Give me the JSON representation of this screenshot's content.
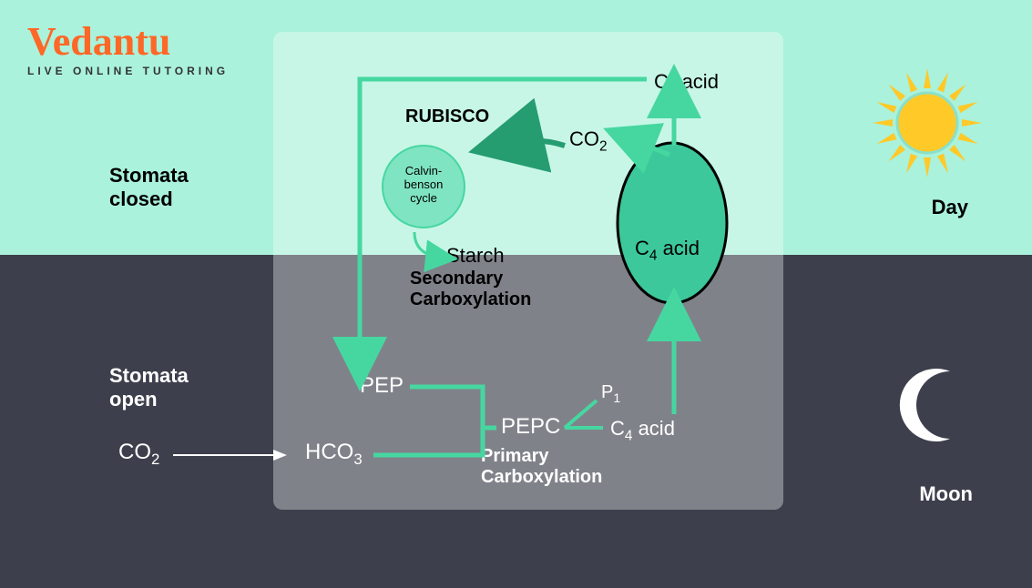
{
  "brand": {
    "name": "Vedantu",
    "tagline": "LIVE ONLINE TUTORING",
    "name_color": "#ff6726",
    "tagline_color": "#333333"
  },
  "colors": {
    "bg_top": "#aaf2db",
    "bg_bottom": "#3d3f4c",
    "overlay": "rgba(255,255,255,0.35)",
    "overlay_dark_half": "rgba(61,63,76,0.0)",
    "green_line": "#46d7a0",
    "dark_green": "#259d71",
    "ellipse_fill": "#3cc89a",
    "ellipse_stroke": "#000000",
    "circle_fill": "#7fe4c2",
    "circle_stroke": "#46d7a0",
    "sun_body": "#ffc928",
    "sun_outline": "#8be0c8",
    "moon_fill": "#ffffff",
    "text_dark": "#111111",
    "text_light": "#ffffff",
    "arrow_white": "#ffffff"
  },
  "labels": {
    "stomata_closed": "Stomata closed",
    "stomata_open": "Stomata open",
    "day": "Day",
    "moon": "Moon",
    "co2_ext": "CO₂",
    "rubisco": "RUBISCO",
    "c3_acid": "C₃ acid",
    "co2": "CO₂",
    "calvin": "Calvin-benson cycle",
    "starch": "Starch",
    "secondary": "Secondary Carboxylation",
    "pep": "PEP",
    "pepc": "PEPC",
    "primary": "Primary Carboxylation",
    "hco3": "HCO₃",
    "p1": "P₁",
    "c4_acid_bottom": "C₄ acid",
    "c4_acid_ellipse": "C₄ acid"
  },
  "layout": {
    "top_height": 280,
    "bottom_height": 366
  }
}
